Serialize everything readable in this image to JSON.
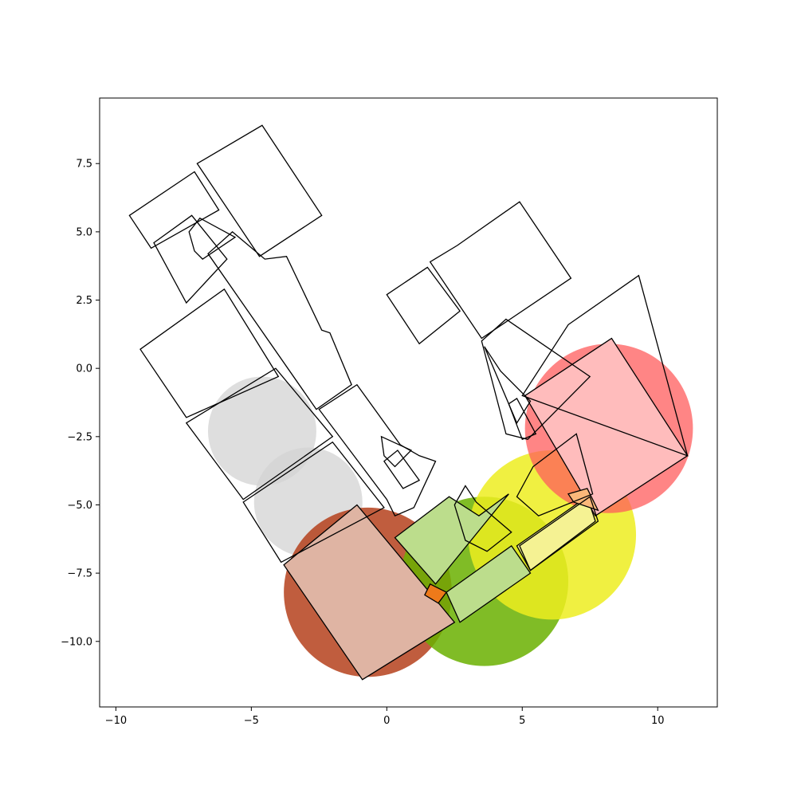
{
  "chart_data": {
    "type": "scatter",
    "title": "",
    "xlabel": "",
    "ylabel": "",
    "xlim": [
      -10.6,
      12.2
    ],
    "ylim": [
      -12.4,
      9.9
    ],
    "grid": false,
    "x_ticks": [
      -10,
      -5,
      0,
      5,
      10
    ],
    "y_ticks": [
      -10.0,
      -7.5,
      -5.0,
      -2.5,
      0.0,
      2.5,
      5.0,
      7.5
    ],
    "x_tick_labels": [
      "−10",
      "−5",
      "0",
      "5",
      "10"
    ],
    "y_tick_labels": [
      "−10.0",
      "−7.5",
      "−5.0",
      "−2.5",
      "0.0",
      "2.5",
      "5.0",
      "7.5"
    ],
    "circles": [
      {
        "center": [
          -4.6,
          -2.3
        ],
        "radius": 2.0,
        "color": "#d3d3d3",
        "alpha": 0.75
      },
      {
        "center": [
          -2.9,
          -4.9
        ],
        "radius": 2.0,
        "color": "#d3d3d3",
        "alpha": 0.75
      },
      {
        "center": [
          -0.7,
          -8.2
        ],
        "radius": 3.1,
        "color": "#b5411c",
        "alpha": 0.85
      },
      {
        "center": [
          3.6,
          -7.8
        ],
        "radius": 3.1,
        "color": "#6ab000",
        "alpha": 0.85
      },
      {
        "center": [
          6.1,
          -6.1
        ],
        "radius": 3.1,
        "color": "#eded20",
        "alpha": 0.85
      },
      {
        "center": [
          8.2,
          -2.2
        ],
        "radius": 3.1,
        "color": "#ff5c5c",
        "alpha": 0.75
      }
    ],
    "filled_rooms": [
      {
        "color": "#dfb4a3",
        "points": [
          [
            -3.8,
            -7.2
          ],
          [
            -1.1,
            -5.0
          ],
          [
            2.5,
            -9.3
          ],
          [
            -0.9,
            -11.4
          ]
        ]
      },
      {
        "color": "#bcdd8c",
        "points": [
          [
            0.3,
            -6.2
          ],
          [
            2.3,
            -4.7
          ],
          [
            3.4,
            -5.4
          ],
          [
            4.5,
            -4.6
          ],
          [
            1.8,
            -7.9
          ]
        ]
      },
      {
        "color": "#bcdd8c",
        "points": [
          [
            2.2,
            -8.2
          ],
          [
            4.6,
            -6.5
          ],
          [
            5.3,
            -7.5
          ],
          [
            2.7,
            -9.3
          ]
        ]
      },
      {
        "color": "#f5f293",
        "points": [
          [
            4.8,
            -6.5
          ],
          [
            7.4,
            -4.7
          ],
          [
            7.7,
            -5.6
          ],
          [
            5.3,
            -7.4
          ]
        ]
      },
      {
        "color": "#ffbcbc",
        "points": [
          [
            5.1,
            -1.0
          ],
          [
            8.3,
            1.1
          ],
          [
            11.1,
            -3.2
          ],
          [
            7.7,
            -5.4
          ]
        ]
      },
      {
        "color": "#fbb87a",
        "points": [
          [
            6.7,
            -4.6
          ],
          [
            7.4,
            -4.4
          ],
          [
            7.8,
            -5.2
          ],
          [
            6.9,
            -4.9
          ]
        ]
      },
      {
        "color": "#ee7a1a",
        "points": [
          [
            1.6,
            -7.9
          ],
          [
            2.2,
            -8.2
          ],
          [
            1.9,
            -8.6
          ],
          [
            1.4,
            -8.3
          ]
        ]
      }
    ],
    "rooms": [
      [
        [
          -9.5,
          5.6
        ],
        [
          -7.1,
          7.2
        ],
        [
          -6.2,
          5.8
        ],
        [
          -8.7,
          4.4
        ]
      ],
      [
        [
          -7.0,
          7.5
        ],
        [
          -4.6,
          8.9
        ],
        [
          -2.4,
          5.6
        ],
        [
          -4.7,
          4.1
        ]
      ],
      [
        [
          -8.6,
          4.6
        ],
        [
          -7.2,
          5.6
        ],
        [
          -5.9,
          4.0
        ],
        [
          -7.4,
          2.4
        ]
      ],
      [
        [
          -7.3,
          5.0
        ],
        [
          -6.9,
          5.5
        ],
        [
          -5.6,
          4.8
        ],
        [
          -6.8,
          4.0
        ],
        [
          -7.1,
          4.3
        ]
      ],
      [
        [
          -6.6,
          4.2
        ],
        [
          -5.7,
          5.0
        ],
        [
          -4.5,
          4.0
        ],
        [
          -3.7,
          4.1
        ],
        [
          -2.4,
          1.4
        ],
        [
          -2.1,
          1.3
        ],
        [
          -1.3,
          -0.6
        ],
        [
          -2.6,
          -1.5
        ]
      ],
      [
        [
          -9.1,
          0.7
        ],
        [
          -6.0,
          2.9
        ],
        [
          -4.0,
          -0.3
        ],
        [
          -7.4,
          -1.8
        ]
      ],
      [
        [
          -7.4,
          -2.0
        ],
        [
          -4.1,
          0.0
        ],
        [
          -2.0,
          -2.5
        ],
        [
          -5.3,
          -4.8
        ]
      ],
      [
        [
          -5.3,
          -4.9
        ],
        [
          -2.0,
          -2.7
        ],
        [
          -0.1,
          -5.1
        ],
        [
          -3.9,
          -7.1
        ]
      ],
      [
        [
          -2.5,
          -1.5
        ],
        [
          -1.1,
          -0.6
        ],
        [
          0.5,
          -2.8
        ],
        [
          1.2,
          -3.2
        ],
        [
          1.8,
          -3.4
        ],
        [
          1.0,
          -5.1
        ],
        [
          0.3,
          -5.4
        ],
        [
          0.0,
          -4.8
        ]
      ],
      [
        [
          -0.1,
          -3.2
        ],
        [
          0.3,
          -3.6
        ],
        [
          0.9,
          -3.0
        ],
        [
          -0.2,
          -2.5
        ]
      ],
      [
        [
          -0.1,
          -3.4
        ],
        [
          0.4,
          -3.0
        ],
        [
          1.2,
          -4.1
        ],
        [
          0.6,
          -4.4
        ]
      ],
      [
        [
          0.0,
          2.7
        ],
        [
          1.5,
          3.7
        ],
        [
          2.7,
          2.1
        ],
        [
          1.2,
          0.9
        ]
      ],
      [
        [
          1.6,
          3.9
        ],
        [
          2.6,
          4.5
        ],
        [
          4.9,
          6.1
        ],
        [
          6.8,
          3.3
        ],
        [
          3.5,
          1.1
        ]
      ],
      [
        [
          3.5,
          1.0
        ],
        [
          4.4,
          1.8
        ],
        [
          7.5,
          -0.3
        ],
        [
          5.2,
          -2.6
        ],
        [
          4.4,
          -2.4
        ]
      ],
      [
        [
          3.6,
          0.8
        ],
        [
          4.2,
          -0.1
        ],
        [
          5.3,
          -1.2
        ],
        [
          4.8,
          -2.0
        ]
      ],
      [
        [
          4.5,
          -1.3
        ],
        [
          4.8,
          -1.1
        ],
        [
          5.5,
          -2.4
        ],
        [
          5.0,
          -2.6
        ]
      ],
      [
        [
          6.7,
          1.6
        ],
        [
          9.3,
          3.4
        ],
        [
          11.1,
          -3.2
        ],
        [
          5.0,
          -1.0
        ]
      ],
      [
        [
          5.4,
          -3.6
        ],
        [
          7.0,
          -2.4
        ],
        [
          7.6,
          -4.6
        ],
        [
          5.6,
          -5.4
        ],
        [
          4.8,
          -4.7
        ]
      ],
      [
        [
          2.5,
          -5.0
        ],
        [
          2.9,
          -4.3
        ],
        [
          3.3,
          -4.9
        ],
        [
          4.6,
          -6.0
        ],
        [
          3.7,
          -6.7
        ],
        [
          2.9,
          -6.3
        ]
      ],
      [
        [
          4.9,
          -6.5
        ],
        [
          7.5,
          -4.7
        ],
        [
          7.8,
          -5.6
        ],
        [
          5.3,
          -7.4
        ]
      ]
    ]
  }
}
